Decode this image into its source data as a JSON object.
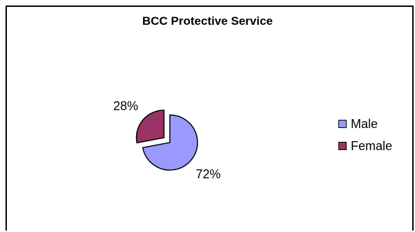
{
  "chart_data": {
    "type": "pie",
    "title": "BCC Protective Service",
    "categories": [
      "Male",
      "Female"
    ],
    "values": [
      72,
      28
    ],
    "data_labels": [
      "72%",
      "28%"
    ],
    "colors": [
      "#9999FF",
      "#993366"
    ],
    "exploded": [
      "Female"
    ],
    "legend": "right"
  }
}
